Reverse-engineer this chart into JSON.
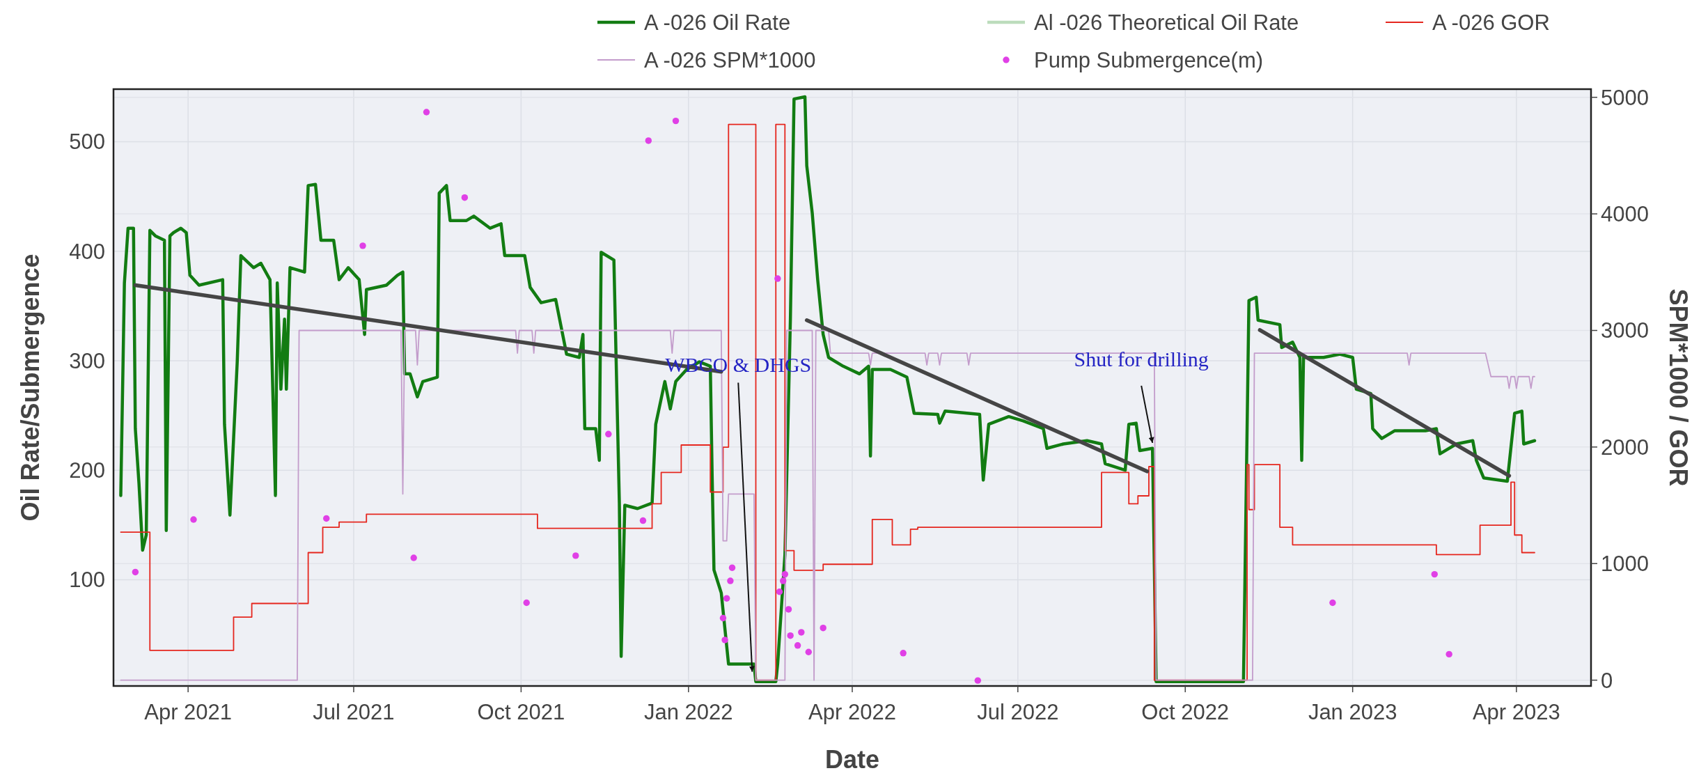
{
  "chart_data": {
    "type": "line",
    "xlabel": "Date",
    "ylabel": "Oil Rate/Submergence",
    "y2label": "SPM*1000 / GOR",
    "xlim": [
      "2021-02-19",
      "2023-05-12"
    ],
    "xticks": [
      {
        "value": "2021-04-01",
        "label": "Apr 2021"
      },
      {
        "value": "2021-07-01",
        "label": "Jul 2021"
      },
      {
        "value": "2021-10-01",
        "label": "Oct 2021"
      },
      {
        "value": "2022-01-01",
        "label": "Jan 2022"
      },
      {
        "value": "2022-04-01",
        "label": "Apr 2022"
      },
      {
        "value": "2022-07-01",
        "label": "Jul 2022"
      },
      {
        "value": "2022-10-01",
        "label": "Oct 2022"
      },
      {
        "value": "2023-01-01",
        "label": "Jan 2023"
      },
      {
        "value": "2023-04-01",
        "label": "Apr 2023"
      }
    ],
    "ylim": [
      3,
      548
    ],
    "yticks": [
      100,
      200,
      300,
      400,
      500
    ],
    "y2lim": [
      -50,
      5070
    ],
    "y2ticks": [
      0,
      1000,
      2000,
      3000,
      4000,
      5000
    ],
    "grid": true,
    "legend": "top",
    "series": [
      {
        "name": "A -026 Oil Rate",
        "color": "#127c12",
        "x": [
          "2021-02-23",
          "2021-02-24",
          "2021-02-25",
          "2021-02-27",
          "2021-03-02",
          "2021-03-03",
          "2021-03-05",
          "2021-03-07",
          "2021-03-09",
          "2021-03-11",
          "2021-03-14",
          "2021-03-19",
          "2021-03-20",
          "2021-03-22",
          "2021-03-24",
          "2021-03-28",
          "2021-03-31",
          "2021-04-02",
          "2021-04-07",
          "2021-04-20",
          "2021-04-21",
          "2021-04-24",
          "2021-04-28",
          "2021-04-30",
          "2021-05-07",
          "2021-05-11",
          "2021-05-16",
          "2021-05-19",
          "2021-05-20",
          "2021-05-22",
          "2021-05-24",
          "2021-05-25",
          "2021-05-27",
          "2021-06-04",
          "2021-06-06",
          "2021-06-10",
          "2021-06-13",
          "2021-06-20",
          "2021-06-23",
          "2021-06-28",
          "2021-07-04",
          "2021-07-07",
          "2021-07-08",
          "2021-07-19",
          "2021-07-25",
          "2021-07-28",
          "2021-07-29",
          "2021-08-01",
          "2021-08-05",
          "2021-08-08",
          "2021-08-16",
          "2021-08-17",
          "2021-08-21",
          "2021-08-23",
          "2021-09-01",
          "2021-09-05",
          "2021-09-14",
          "2021-09-20",
          "2021-09-22",
          "2021-10-03",
          "2021-10-06",
          "2021-10-12",
          "2021-10-20",
          "2021-10-26",
          "2021-11-02",
          "2021-11-04",
          "2021-11-05",
          "2021-11-11",
          "2021-11-13",
          "2021-11-14",
          "2021-11-21",
          "2021-11-24",
          "2021-11-25",
          "2021-11-27",
          "2021-12-04",
          "2021-12-12",
          "2021-12-14",
          "2021-12-19",
          "2021-12-22",
          "2021-12-25",
          "2021-12-31",
          "2022-01-07",
          "2022-01-13",
          "2022-01-14",
          "2022-01-15",
          "2022-01-19",
          "2022-01-23",
          "2022-02-06",
          "2022-02-07",
          "2022-02-18",
          "2022-02-19",
          "2022-02-23",
          "2022-02-26",
          "2022-02-28",
          "2022-03-06",
          "2022-03-07",
          "2022-03-10",
          "2022-03-13",
          "2022-03-16",
          "2022-03-19",
          "2022-03-27",
          "2022-04-05",
          "2022-04-10",
          "2022-04-11",
          "2022-04-12",
          "2022-04-22",
          "2022-05-01",
          "2022-05-05",
          "2022-05-18",
          "2022-05-19",
          "2022-05-22",
          "2022-06-10",
          "2022-06-12",
          "2022-06-15",
          "2022-06-26",
          "2022-07-04",
          "2022-07-15",
          "2022-07-17",
          "2022-07-26",
          "2022-08-08",
          "2022-08-16",
          "2022-08-18",
          "2022-08-29",
          "2022-08-31",
          "2022-09-04",
          "2022-09-06",
          "2022-09-13",
          "2022-09-15",
          "2022-11-02",
          "2022-11-05",
          "2022-11-09",
          "2022-11-10",
          "2022-11-22",
          "2022-11-23",
          "2022-11-29",
          "2022-12-03",
          "2022-12-04",
          "2022-12-05",
          "2022-12-16",
          "2022-12-25",
          "2023-01-01",
          "2023-01-03",
          "2023-01-11",
          "2023-01-12",
          "2023-01-17",
          "2023-01-24",
          "2023-02-10",
          "2023-02-16",
          "2023-02-18",
          "2023-02-27",
          "2023-03-08",
          "2023-03-10",
          "2023-03-14",
          "2023-03-27",
          "2023-03-31",
          "2023-04-04",
          "2023-04-05",
          "2023-04-11"
        ],
        "values": [
          177,
          274,
          371,
          421,
          421,
          238,
          188,
          127,
          141,
          419,
          414,
          410,
          145,
          414,
          417,
          421,
          417,
          378,
          369,
          374,
          242,
          159,
          299,
          396,
          385,
          389,
          374,
          177,
          371,
          274,
          338,
          274,
          385,
          381,
          460,
          461,
          410,
          410,
          374,
          385,
          374,
          324,
          365,
          369,
          378,
          381,
          288,
          288,
          267,
          281,
          285,
          453,
          460,
          428,
          428,
          432,
          421,
          425,
          396,
          396,
          367,
          353,
          356,
          306,
          303,
          324,
          238,
          238,
          209,
          399,
          392,
          170,
          30,
          168,
          165,
          170,
          242,
          281,
          256,
          281,
          292,
          299,
          295,
          195,
          109,
          88,
          23,
          23,
          7,
          7,
          23,
          123,
          338,
          539,
          541,
          478,
          435,
          374,
          324,
          303,
          295,
          288,
          295,
          213,
          292,
          292,
          285,
          252,
          251,
          243,
          254,
          251,
          191,
          242,
          249,
          245,
          238,
          220,
          224,
          227,
          224,
          206,
          200,
          242,
          243,
          218,
          220,
          7,
          7,
          355,
          358,
          337,
          333,
          312,
          317,
          303,
          209,
          303,
          303,
          306,
          303,
          274,
          270,
          238,
          229,
          236,
          236,
          238,
          215,
          224,
          227,
          209,
          193,
          190,
          252,
          254,
          224,
          227
        ]
      },
      {
        "name": "Al -026 Theoretical Oil Rate",
        "color": "#bcdcbc"
      },
      {
        "name": "A -026 GOR",
        "type": "step",
        "axis": "y2",
        "color": "#e5261e",
        "x": [
          "2021-02-23",
          "2021-03-11",
          "2021-04-26",
          "2021-05-06",
          "2021-06-06",
          "2021-06-14",
          "2021-06-23",
          "2021-07-08",
          "2021-10-10",
          "2021-12-12",
          "2021-12-17",
          "2021-12-28",
          "2022-01-13",
          "2022-01-20",
          "2022-01-23",
          "2022-02-07",
          "2022-02-18",
          "2022-02-23",
          "2022-02-28",
          "2022-03-16",
          "2022-04-12",
          "2022-04-23",
          "2022-05-03",
          "2022-05-07",
          "2022-08-16",
          "2022-08-31",
          "2022-09-05",
          "2022-09-11",
          "2022-09-14",
          "2022-11-04",
          "2022-11-05",
          "2022-11-08",
          "2022-11-22",
          "2022-11-29",
          "2023-02-16",
          "2023-03-12",
          "2023-03-29",
          "2023-03-31",
          "2023-04-04",
          "2023-04-11"
        ],
        "values": [
          1270,
          256,
          541,
          658,
          1094,
          1312,
          1356,
          1423,
          1302,
          1513,
          1782,
          2017,
          1614,
          1999,
          4767,
          0,
          4767,
          1111,
          943,
          994,
          1379,
          1161,
          1295,
          1312,
          1782,
          1513,
          1581,
          1832,
          0,
          1849,
          1463,
          1849,
          1312,
          1161,
          1077,
          1329,
          1698,
          1245,
          1094,
          1094
        ]
      },
      {
        "name": "A -026 SPM*1000",
        "type": "line",
        "axis": "y2",
        "color": "#c39ccb",
        "x": [
          "2021-02-23",
          "2021-05-31",
          "2021-06-01",
          "2021-07-27",
          "2021-07-28",
          "2021-07-29",
          "2021-08-04",
          "2021-08-05",
          "2021-08-06",
          "2021-09-28",
          "2021-09-29",
          "2021-09-30",
          "2021-10-07",
          "2021-10-08",
          "2021-10-09",
          "2021-12-22",
          "2021-12-23",
          "2021-12-24",
          "2022-01-19",
          "2022-01-20",
          "2022-01-22",
          "2022-01-23",
          "2022-02-06",
          "2022-02-07",
          "2022-02-23",
          "2022-02-24",
          "2022-03-10",
          "2022-03-11",
          "2022-03-12",
          "2022-03-19",
          "2022-03-20",
          "2022-04-10",
          "2022-04-11",
          "2022-04-12",
          "2022-05-11",
          "2022-05-12",
          "2022-05-13",
          "2022-05-18",
          "2022-05-19",
          "2022-05-20",
          "2022-06-03",
          "2022-06-04",
          "2022-06-05",
          "2022-09-14",
          "2022-09-15",
          "2022-11-07",
          "2022-11-08",
          "2023-01-31",
          "2023-02-01",
          "2023-02-02",
          "2023-03-15",
          "2023-03-18",
          "2023-03-27",
          "2023-03-28",
          "2023-03-29",
          "2023-03-31",
          "2023-04-01",
          "2023-04-02",
          "2023-04-08",
          "2023-04-09",
          "2023-04-10",
          "2023-04-11"
        ],
        "values": [
          0,
          0,
          3000,
          3000,
          1597,
          3000,
          3000,
          2704,
          3000,
          3000,
          2805,
          3000,
          3000,
          2805,
          3000,
          3000,
          2805,
          3000,
          3000,
          1195,
          1195,
          1597,
          1597,
          0,
          0,
          3000,
          3000,
          0,
          3000,
          3000,
          2805,
          2805,
          2704,
          2805,
          2805,
          2704,
          2805,
          2805,
          2704,
          2805,
          2805,
          2704,
          2805,
          2805,
          0,
          0,
          2805,
          2805,
          2704,
          2805,
          2805,
          2604,
          2604,
          2503,
          2604,
          2604,
          2503,
          2604,
          2604,
          2503,
          2604,
          2604
        ]
      },
      {
        "name": "Pump Submergence(m)",
        "type": "scatter",
        "marker": "circle",
        "color": "#e040e6",
        "x": [
          "2021-03-03",
          "2021-04-04",
          "2021-06-16",
          "2021-07-06",
          "2021-08-03",
          "2021-08-10",
          "2021-08-31",
          "2021-10-04",
          "2021-10-31",
          "2021-11-18",
          "2021-12-07",
          "2021-12-10",
          "2021-12-25",
          "2022-01-20",
          "2022-01-21",
          "2022-01-22",
          "2022-01-24",
          "2022-01-25",
          "2022-02-19",
          "2022-02-20",
          "2022-02-22",
          "2022-02-23",
          "2022-02-25",
          "2022-02-26",
          "2022-03-02",
          "2022-03-04",
          "2022-03-08",
          "2022-03-16",
          "2022-04-29",
          "2022-06-09",
          "2022-12-21",
          "2023-02-15",
          "2023-02-23"
        ],
        "values": [
          107,
          155,
          156,
          405,
          120,
          527,
          449,
          79,
          122,
          233,
          154,
          501,
          519,
          65,
          45,
          83,
          99,
          111,
          375,
          89,
          99,
          105,
          73,
          49,
          40,
          52,
          34,
          56,
          33,
          8,
          79,
          105,
          32
        ]
      },
      {
        "color": "#454545",
        "x": [
          "2021-03-03",
          "2022-01-19"
        ],
        "values": [
          369,
          290
        ]
      },
      {
        "color": "#454545",
        "x": [
          "2022-03-07",
          "2022-09-10"
        ],
        "values": [
          337,
          199
        ]
      },
      {
        "color": "#454545",
        "x": [
          "2022-11-11",
          "2023-03-28"
        ],
        "values": [
          328,
          195
        ]
      }
    ],
    "annotations": [
      {
        "text": "WBCO & DHGS",
        "x": "2022-02-05",
        "y": 16
      },
      {
        "text": "Shut for drilling",
        "x": "2022-09-13",
        "y": 225
      }
    ]
  }
}
